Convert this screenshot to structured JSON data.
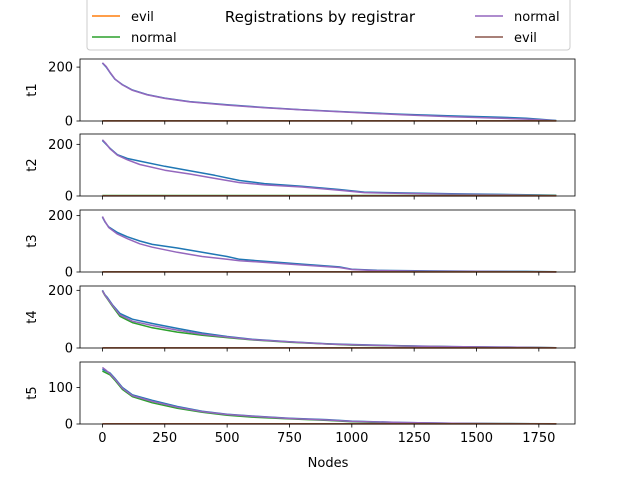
{
  "chart_data": {
    "type": "line",
    "title": "Registrations by registrar",
    "xlabel": "Nodes",
    "xlim": [
      -90,
      1895
    ],
    "xticks": [
      0,
      250,
      500,
      750,
      1000,
      1250,
      1500,
      1750
    ],
    "xtick_labels": [
      "0",
      "250",
      "500",
      "750",
      "1000",
      "1250",
      "1500",
      "1750"
    ],
    "legend": {
      "placement": "top",
      "entries": [
        {
          "label": "evil",
          "color": "#ff7f0e"
        },
        {
          "label": "normal",
          "color": "#2ca02c"
        },
        {
          "label": "normal",
          "color": "#9467bd"
        },
        {
          "label": "evil",
          "color": "#8c564b"
        }
      ]
    },
    "panels": [
      {
        "ylabel": "t1",
        "ylim": [
          0,
          230
        ],
        "yticks": [
          0,
          200
        ],
        "series": [
          {
            "color": "#1f77b4",
            "x": [
              0,
              15,
              30,
              50,
              80,
              120,
              180,
              250,
              350,
              500,
              650,
              800,
              1000,
              1200,
              1400,
              1600,
              1700,
              1760,
              1820
            ],
            "y": [
              215,
              200,
              180,
              155,
              135,
              115,
              98,
              85,
              72,
              60,
              50,
              42,
              33,
              25,
              19,
              14,
              10,
              6,
              2
            ]
          },
          {
            "color": "#9467bd",
            "x": [
              0,
              15,
              30,
              50,
              80,
              120,
              180,
              250,
              350,
              500,
              650,
              800,
              1000,
              1200,
              1400,
              1600,
              1700,
              1760,
              1820
            ],
            "y": [
              216,
              202,
              181,
              156,
              134,
              114,
              97,
              84,
              71,
              59,
              49,
              41,
              32,
              23,
              16,
              10,
              7,
              4,
              1
            ]
          },
          {
            "color": "#2ca02c",
            "x": [
              0,
              1820
            ],
            "y": [
              1,
              1
            ]
          },
          {
            "color": "#ff7f0e",
            "x": [
              0,
              1820
            ],
            "y": [
              0.5,
              0.5
            ]
          },
          {
            "color": "#8c564b",
            "x": [
              0,
              1820
            ],
            "y": [
              0.3,
              0.3
            ]
          }
        ]
      },
      {
        "ylabel": "t2",
        "ylim": [
          0,
          240
        ],
        "yticks": [
          0,
          200
        ],
        "series": [
          {
            "color": "#1f77b4",
            "x": [
              0,
              15,
              30,
              60,
              100,
              150,
              250,
              350,
              450,
              550,
              650,
              800,
              950,
              1050,
              1200,
              1400,
              1600,
              1700,
              1820
            ],
            "y": [
              215,
              200,
              185,
              160,
              145,
              135,
              115,
              98,
              80,
              60,
              48,
              38,
              25,
              15,
              12,
              9,
              6,
              5,
              3
            ]
          },
          {
            "color": "#9467bd",
            "x": [
              0,
              15,
              30,
              60,
              100,
              150,
              250,
              350,
              450,
              550,
              650,
              800,
              950,
              1050,
              1200,
              1400,
              1600,
              1700,
              1820
            ],
            "y": [
              218,
              202,
              183,
              158,
              140,
              122,
              100,
              85,
              68,
              52,
              43,
              35,
              22,
              13,
              10,
              7,
              5,
              4,
              2
            ]
          },
          {
            "color": "#2ca02c",
            "x": [
              0,
              1820
            ],
            "y": [
              2,
              2
            ]
          },
          {
            "color": "#ff7f0e",
            "x": [
              0,
              1820
            ],
            "y": [
              1,
              1
            ]
          },
          {
            "color": "#8c564b",
            "x": [
              0,
              1820
            ],
            "y": [
              0.5,
              0.5
            ]
          }
        ]
      },
      {
        "ylabel": "t3",
        "ylim": [
          0,
          220
        ],
        "yticks": [
          0,
          200
        ],
        "series": [
          {
            "color": "#1f77b4",
            "x": [
              0,
              10,
              25,
              60,
              100,
              150,
              200,
              300,
              400,
              500,
              550,
              650,
              800,
              950,
              1000,
              1100,
              1300,
              1500,
              1700,
              1820
            ],
            "y": [
              195,
              178,
              160,
              140,
              125,
              110,
              98,
              85,
              70,
              55,
              45,
              38,
              28,
              18,
              10,
              6,
              4,
              3,
              2,
              1
            ]
          },
          {
            "color": "#9467bd",
            "x": [
              0,
              10,
              25,
              60,
              100,
              150,
              200,
              300,
              400,
              500,
              550,
              650,
              800,
              950,
              1000,
              1100,
              1300,
              1500,
              1700,
              1820
            ],
            "y": [
              197,
              180,
              158,
              135,
              118,
              100,
              88,
              70,
              55,
              45,
              40,
              34,
              25,
              16,
              9,
              5,
              3,
              2,
              1,
              0
            ]
          },
          {
            "color": "#2ca02c",
            "x": [
              0,
              1820
            ],
            "y": [
              1,
              1
            ]
          },
          {
            "color": "#ff7f0e",
            "x": [
              0,
              1820
            ],
            "y": [
              0.5,
              0.5
            ]
          },
          {
            "color": "#8c564b",
            "x": [
              0,
              1820
            ],
            "y": [
              0.3,
              0.3
            ]
          }
        ]
      },
      {
        "ylabel": "t4",
        "ylim": [
          0,
          215
        ],
        "yticks": [
          0,
          200
        ],
        "series": [
          {
            "color": "#1f77b4",
            "x": [
              0,
              10,
              20,
              40,
              70,
              120,
              200,
              300,
              400,
              500,
              600,
              750,
              900,
              1000,
              1200,
              1400,
              1600,
              1820
            ],
            "y": [
              200,
              185,
              175,
              150,
              120,
              100,
              85,
              68,
              52,
              40,
              30,
              22,
              15,
              12,
              8,
              5,
              3,
              1
            ]
          },
          {
            "color": "#2ca02c",
            "x": [
              0,
              10,
              20,
              40,
              70,
              120,
              200,
              300,
              400,
              500,
              600,
              750,
              900,
              1000,
              1200,
              1400,
              1600,
              1820
            ],
            "y": [
              198,
              182,
              170,
              145,
              110,
              88,
              70,
              55,
              44,
              36,
              28,
              20,
              14,
              10,
              7,
              4,
              2,
              1
            ]
          },
          {
            "color": "#9467bd",
            "x": [
              0,
              10,
              20,
              40,
              70,
              120,
              200,
              300,
              400,
              500,
              600,
              750,
              900,
              1000,
              1200,
              1400,
              1600,
              1820
            ],
            "y": [
              199,
              183,
              172,
              148,
              115,
              93,
              78,
              62,
              48,
              38,
              29,
              21,
              14,
              11,
              7,
              5,
              3,
              1
            ]
          },
          {
            "color": "#ff7f0e",
            "x": [
              0,
              1820
            ],
            "y": [
              0.5,
              0.5
            ]
          },
          {
            "color": "#8c564b",
            "x": [
              0,
              1820
            ],
            "y": [
              0.3,
              0.3
            ]
          }
        ]
      },
      {
        "ylabel": "t5",
        "ylim": [
          0,
          170
        ],
        "yticks": [
          0,
          100
        ],
        "series": [
          {
            "color": "#1f77b4",
            "x": [
              0,
              15,
              30,
              50,
              80,
              120,
              200,
              300,
              400,
              500,
              600,
              750,
              900,
              1000,
              1200,
              1400,
              1600,
              1820
            ],
            "y": [
              150,
              145,
              140,
              125,
              100,
              80,
              65,
              48,
              35,
              27,
              22,
              16,
              12,
              8,
              4,
              2,
              1,
              0.5
            ]
          },
          {
            "color": "#2ca02c",
            "x": [
              0,
              15,
              30,
              50,
              80,
              120,
              200,
              300,
              400,
              500,
              600,
              750,
              900,
              1000,
              1200,
              1400,
              1600,
              1820
            ],
            "y": [
              145,
              140,
              135,
              120,
              95,
              75,
              58,
              43,
              32,
              24,
              19,
              14,
              10,
              6,
              3,
              1.5,
              1,
              0.3
            ]
          },
          {
            "color": "#9467bd",
            "x": [
              0,
              15,
              30,
              50,
              80,
              120,
              200,
              300,
              400,
              500,
              600,
              750,
              900,
              1000,
              1200,
              1400,
              1600,
              1820
            ],
            "y": [
              155,
              147,
              138,
              123,
              98,
              78,
              62,
              46,
              34,
              26,
              21,
              15,
              11,
              7,
              4,
              2,
              1,
              0.4
            ]
          },
          {
            "color": "#ff7f0e",
            "x": [
              0,
              1820
            ],
            "y": [
              0.5,
              0.5
            ]
          },
          {
            "color": "#8c564b",
            "x": [
              0,
              1820
            ],
            "y": [
              0.3,
              0.3
            ]
          }
        ]
      }
    ]
  }
}
